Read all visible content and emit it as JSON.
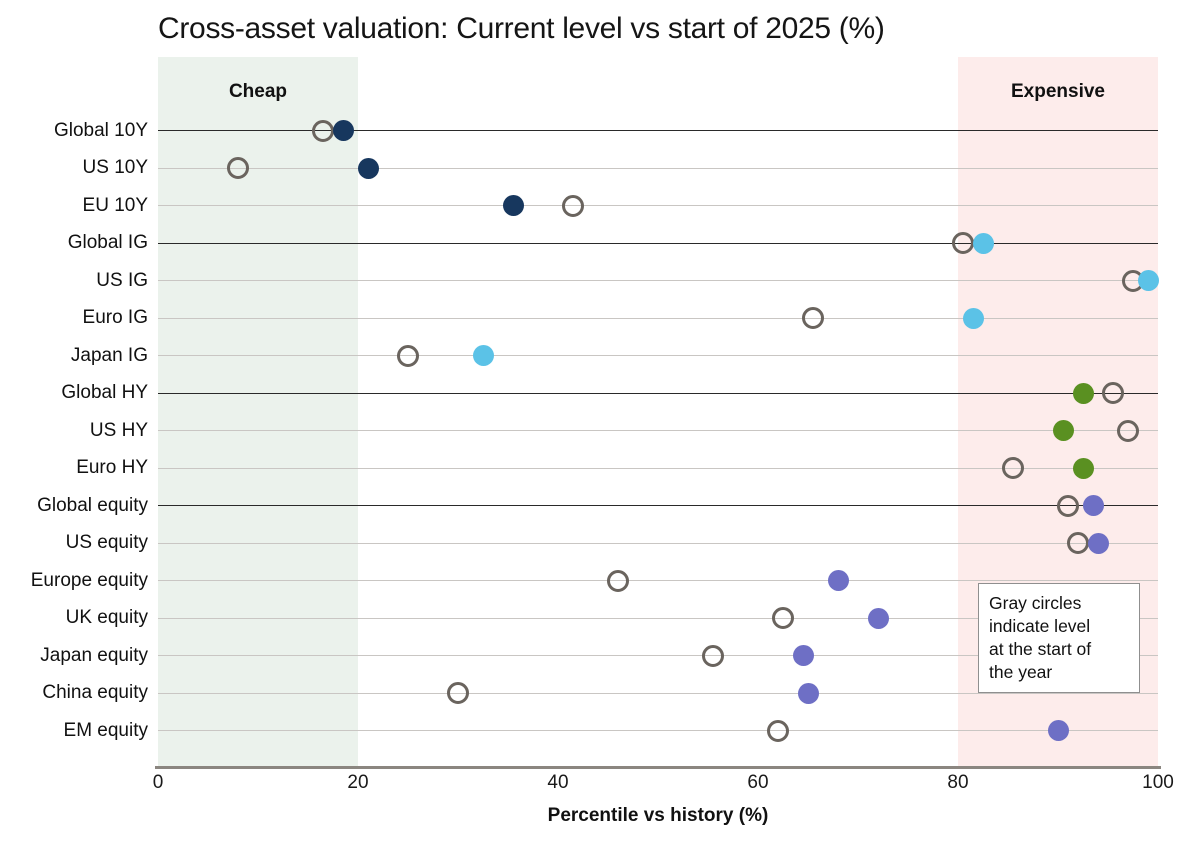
{
  "chart_data": {
    "type": "scatter",
    "title": "Cross-asset valuation: Current level vs start of 2025 (%)",
    "xlabel": "Percentile vs history (%)",
    "xlim": [
      0,
      100
    ],
    "xticks": [
      0,
      20,
      40,
      60,
      80,
      100
    ],
    "grid": "horizontal-row-lines",
    "annotation": "Gray circles\nindicate level\nat the start of\nthe year",
    "bands": [
      {
        "label": "Cheap",
        "from": 0,
        "to": 20,
        "color": "#ebf2ec"
      },
      {
        "label": "Expensive",
        "from": 80,
        "to": 100,
        "color": "#fdeceb"
      }
    ],
    "series": [
      {
        "name": "Start of 2025",
        "marker": "open-circle",
        "color": "#6a645e"
      },
      {
        "name": "Current level",
        "marker": "filled-circle",
        "color": "by-group"
      }
    ],
    "group_colors": {
      "rates": "#17375e",
      "credit_ig": "#5bc2e7",
      "credit_hy": "#5a9021",
      "equity": "#6e6fc5"
    },
    "rows": [
      {
        "label": "Global 10Y",
        "group": "rates",
        "start": 16.5,
        "current": 18.5,
        "separator": true
      },
      {
        "label": "US 10Y",
        "group": "rates",
        "start": 8,
        "current": 21,
        "separator": false
      },
      {
        "label": "EU 10Y",
        "group": "rates",
        "start": 41.5,
        "current": 35.5,
        "separator": false
      },
      {
        "label": "Global IG",
        "group": "credit_ig",
        "start": 80.5,
        "current": 82.5,
        "separator": true
      },
      {
        "label": "US IG",
        "group": "credit_ig",
        "start": 97.5,
        "current": 99,
        "separator": false
      },
      {
        "label": "Euro IG",
        "group": "credit_ig",
        "start": 65.5,
        "current": 81.5,
        "separator": false
      },
      {
        "label": "Japan IG",
        "group": "credit_ig",
        "start": 25,
        "current": 32.5,
        "separator": false
      },
      {
        "label": "Global HY",
        "group": "credit_hy",
        "start": 95.5,
        "current": 92.5,
        "separator": true
      },
      {
        "label": "US HY",
        "group": "credit_hy",
        "start": 97,
        "current": 90.5,
        "separator": false
      },
      {
        "label": "Euro HY",
        "group": "credit_hy",
        "start": 85.5,
        "current": 92.5,
        "separator": false
      },
      {
        "label": "Global equity",
        "group": "equity",
        "start": 91,
        "current": 93.5,
        "separator": true
      },
      {
        "label": "US equity",
        "group": "equity",
        "start": 92,
        "current": 94,
        "separator": false
      },
      {
        "label": "Europe equity",
        "group": "equity",
        "start": 46,
        "current": 68,
        "separator": false
      },
      {
        "label": "UK equity",
        "group": "equity",
        "start": 62.5,
        "current": 72,
        "separator": false
      },
      {
        "label": "Japan equity",
        "group": "equity",
        "start": 55.5,
        "current": 64.5,
        "separator": false
      },
      {
        "label": "China equity",
        "group": "equity",
        "start": 30,
        "current": 65,
        "separator": false
      },
      {
        "label": "EM equity",
        "group": "equity",
        "start": 62,
        "current": 90,
        "separator": false
      }
    ],
    "line_colors": {
      "separator": "#2a2a2a",
      "normal": "#c9c6c3"
    }
  }
}
